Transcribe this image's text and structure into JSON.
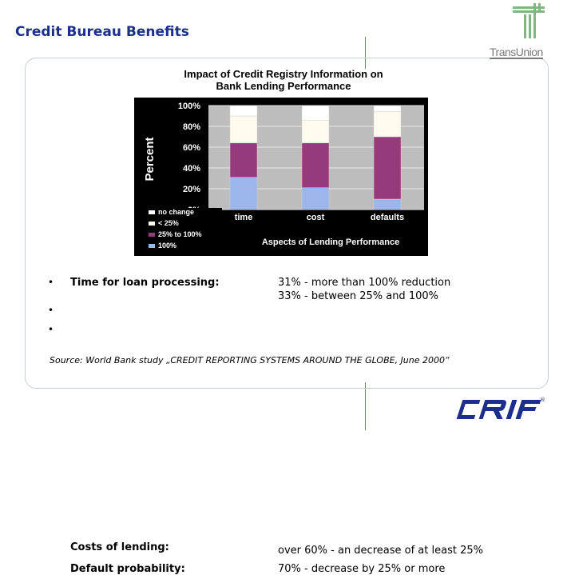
{
  "slide": {
    "title": "Credit Bureau Benefits",
    "logo_text": "TransUnion",
    "brand_logo": "CRIF",
    "accent_color": "#1d2f8c"
  },
  "chart_data": {
    "type": "bar",
    "stacked": true,
    "title": "Impact of Credit Registry Information on Bank Lending Performance",
    "title_lines": [
      "Impact of Credit Registry Information on",
      "Bank Lending Performance"
    ],
    "xlabel": "Aspects of Lending Performance",
    "ylabel": "Percent",
    "categories": [
      "time",
      "cost",
      "defaults"
    ],
    "ylim": [
      0,
      100
    ],
    "yticks": [
      "100%",
      "80%",
      "60%",
      "40%",
      "20%",
      "0%"
    ],
    "ytick_values": [
      100,
      80,
      60,
      40,
      20,
      0
    ],
    "grid": true,
    "legend_position": "bottom-left",
    "series": [
      {
        "name": "100%",
        "color": "#9ab6ea",
        "values": [
          31,
          21,
          10
        ]
      },
      {
        "name": "25% to 100%",
        "color": "#953a7a",
        "values": [
          33,
          43,
          60
        ]
      },
      {
        "name": "< 25%",
        "color": "#fffaee",
        "values": [
          26,
          22,
          24
        ]
      },
      {
        "name": "no change",
        "color": "#ffffff",
        "values": [
          10,
          14,
          6
        ]
      }
    ],
    "legend_order": [
      "no change",
      "< 25%",
      "25% to 100%",
      "100%"
    ]
  },
  "findings": [
    {
      "label": "Time for loan processing:",
      "text": [
        "31% - more than 100% reduction",
        "33% - between 25% and 100%"
      ]
    },
    {
      "label": "Costs of lending:",
      "text": [
        "over 60% - an decrease of at least 25%"
      ]
    },
    {
      "label": "Default probability:",
      "text": [
        "70% - decrease by 25% or more"
      ]
    }
  ],
  "bullet_symbol": "•",
  "source": "Source: World Bank study „CREDIT REPORTING SYSTEMS AROUND THE GLOBE, June 2000“"
}
